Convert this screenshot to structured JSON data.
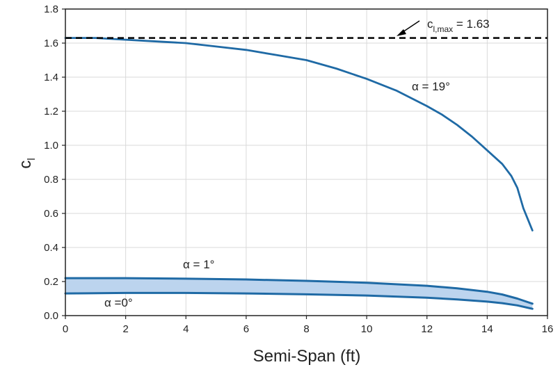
{
  "chart_data": {
    "type": "line",
    "xlabel": "Semi-Span (ft)",
    "ylabel_main": "c",
    "ylabel_sub": "l",
    "xlim": [
      0,
      16
    ],
    "ylim": [
      0,
      1.8
    ],
    "xticks": [
      "0",
      "2",
      "4",
      "6",
      "8",
      "10",
      "12",
      "14",
      "16"
    ],
    "yticks": [
      "0.0",
      "0.2",
      "0.4",
      "0.6",
      "0.8",
      "1.0",
      "1.2",
      "1.4",
      "1.6",
      "1.8"
    ],
    "grid": true,
    "series": [
      {
        "name": "α = 19°",
        "color": "#1f6aa5",
        "x": [
          0,
          1,
          2,
          3,
          4,
          5,
          6,
          7,
          8,
          9,
          10,
          11,
          12,
          12.5,
          13,
          13.5,
          14,
          14.5,
          14.8,
          15.0,
          15.2,
          15.5
        ],
        "y": [
          1.63,
          1.63,
          1.62,
          1.61,
          1.6,
          1.58,
          1.56,
          1.53,
          1.5,
          1.45,
          1.39,
          1.32,
          1.23,
          1.18,
          1.12,
          1.05,
          0.97,
          0.89,
          0.82,
          0.75,
          0.63,
          0.5
        ]
      },
      {
        "name": "α = 1°",
        "color": "#1f6aa5",
        "x": [
          0,
          2,
          4,
          6,
          8,
          10,
          12,
          13,
          14,
          14.5,
          15,
          15.5
        ],
        "y": [
          0.22,
          0.22,
          0.217,
          0.212,
          0.204,
          0.193,
          0.175,
          0.16,
          0.14,
          0.124,
          0.1,
          0.07
        ]
      },
      {
        "name": "α =0°",
        "color": "#1f6aa5",
        "x": [
          0,
          2,
          4,
          6,
          8,
          10,
          12,
          13,
          14,
          14.5,
          15,
          15.5
        ],
        "y": [
          0.13,
          0.133,
          0.133,
          0.13,
          0.125,
          0.118,
          0.105,
          0.095,
          0.082,
          0.073,
          0.06,
          0.04
        ]
      }
    ],
    "reference_line": {
      "y": 1.63,
      "style": "dashed",
      "color": "#000000"
    },
    "annotations": {
      "clmax_main": "c",
      "clmax_sub": "l,max",
      "clmax_value": " = 1.63",
      "alpha19": "α = 19°",
      "alpha1": "α = 1°",
      "alpha0": "α =0°"
    },
    "band_color": "#bcd4ee"
  }
}
